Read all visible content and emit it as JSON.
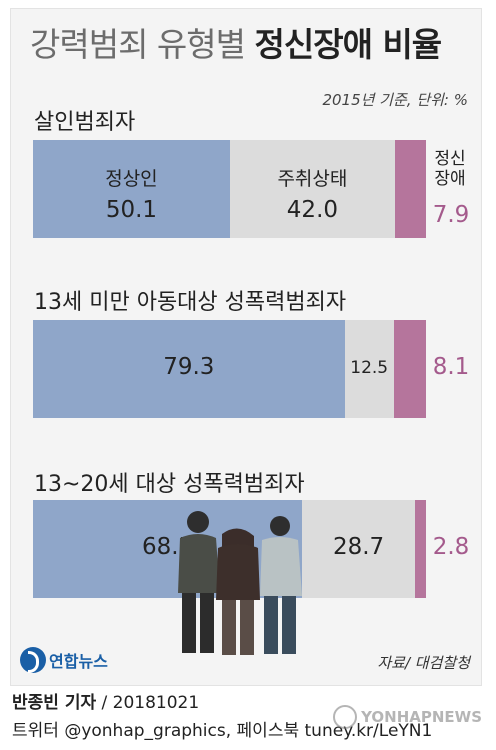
{
  "chart_data": {
    "type": "bar",
    "stacked": true,
    "orientation": "horizontal",
    "title": "강력범죄 유형별 정신장애 비율",
    "title_plain": "강력범죄 유형별",
    "title_bold": "정신장애 비율",
    "subtitle": "2015년 기준, 단위: %",
    "categories": [
      "살인범죄자",
      "13세 미만 아동대상 성폭력범죄자",
      "13~20세 대상 성폭력범죄자"
    ],
    "series": [
      {
        "name": "정상인",
        "values": [
          50.1,
          79.3,
          68.5
        ],
        "color": "#8fa6c9"
      },
      {
        "name": "주취상태",
        "values": [
          42.0,
          12.5,
          28.7
        ],
        "color": "#dcdcdc"
      },
      {
        "name": "정신장애",
        "values": [
          7.9,
          8.1,
          2.8
        ],
        "color": "#b5759c"
      }
    ],
    "value_labels": [
      [
        "50.1",
        "42.0",
        "7.9"
      ],
      [
        "79.3",
        "12.5",
        "8.1"
      ],
      [
        "68.5",
        "28.7",
        "2.8"
      ]
    ],
    "mental_header": [
      "정신",
      "장애"
    ],
    "value_label_color": "#222222",
    "mental_value_color": "#a45a8c",
    "ylim": [
      0,
      100
    ],
    "legend": "inline"
  },
  "footer": {
    "source": "자료/ 대검찰청",
    "logo_text": "연합뉴스",
    "reporter_name": "반종빈 기자",
    "reporter_date": " / 20181021",
    "social": "트위터 @yonhap_graphics, 페이스북 tuney.kr/LeYN1",
    "watermark": "YONHAPNEWS"
  },
  "icons": {
    "logo": "yonhap-logo-icon",
    "watermark": "yonhap-watermark-icon",
    "figures": "people-escort-illustration"
  }
}
